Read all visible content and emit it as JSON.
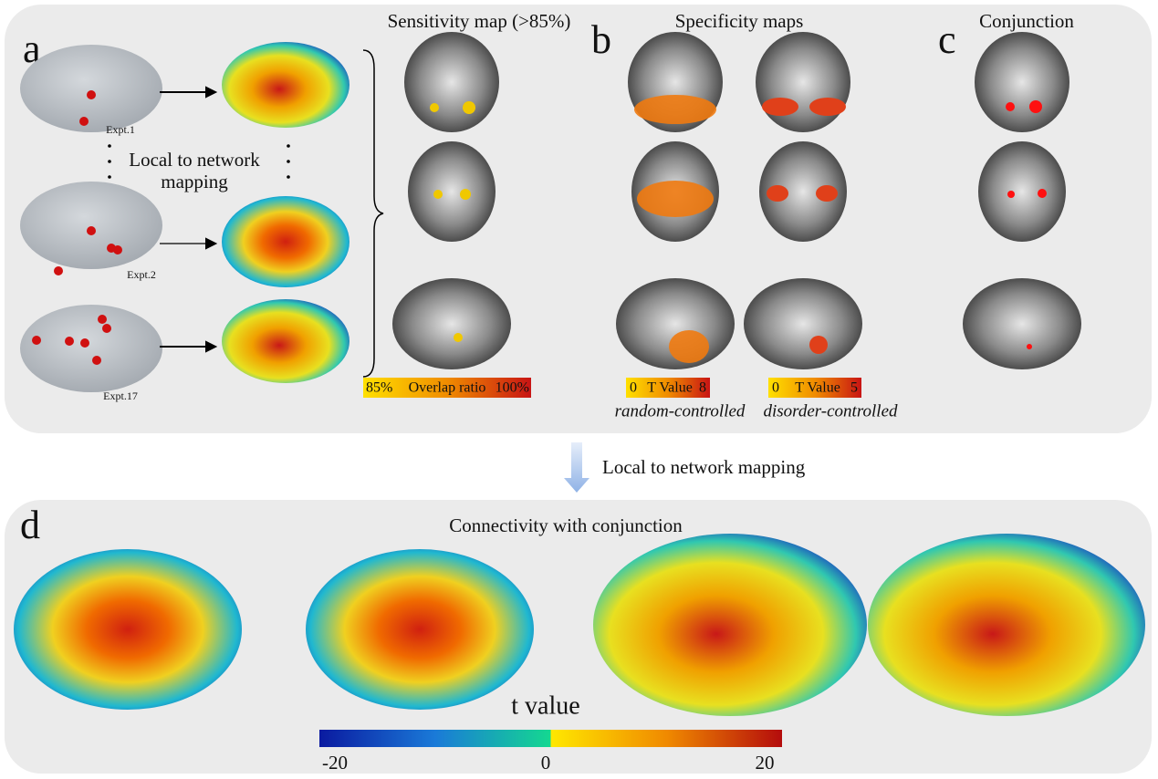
{
  "panel_a": {
    "label": "a",
    "title": "Sensitivity map (>85%)",
    "experiments": [
      "Expt.1",
      "Expt.2",
      "Expt.17"
    ],
    "mapping_text": [
      "Local to network",
      "mapping"
    ],
    "colorbar": [
      "85%",
      "Overlap ratio",
      "100%"
    ]
  },
  "panel_b": {
    "label": "b",
    "title": "Specificity maps",
    "maps": [
      {
        "colorbar": [
          "0",
          "T Value",
          "8"
        ],
        "caption": "random-controlled"
      },
      {
        "colorbar": [
          "0",
          "T Value",
          "5"
        ],
        "caption": "disorder-controlled"
      }
    ]
  },
  "panel_c": {
    "label": "c",
    "title": "Conjunction"
  },
  "arrow_text": "Local to network mapping",
  "panel_d": {
    "label": "d",
    "title": "Connectivity with conjunction",
    "colorbar_title": "t value",
    "colorbar_ticks": [
      "-20",
      "0",
      "20"
    ]
  }
}
